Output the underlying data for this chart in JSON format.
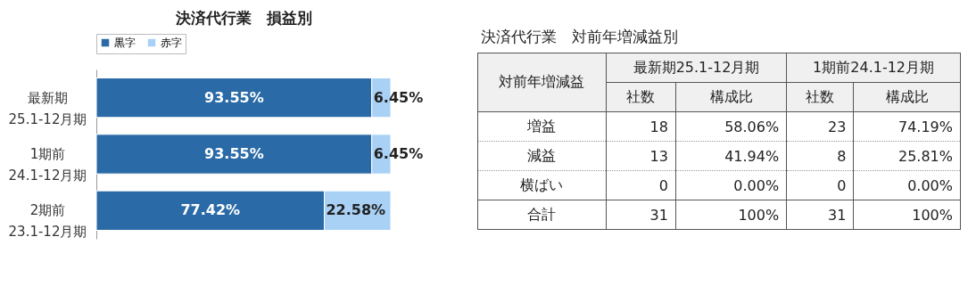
{
  "chart_data": [
    {
      "type": "bar",
      "orientation": "horizontal",
      "stacked": true,
      "title": "決済代行業　損益別",
      "legend": "top",
      "categories": [
        "最新期\n25.1-12月期",
        "1期前\n24.1-12月期",
        "2期前\n23.1-12月期"
      ],
      "series": [
        {
          "name": "黒字",
          "color": "#2a6aa6",
          "values": [
            93.55,
            93.55,
            77.42
          ],
          "value_labels": [
            "93.55%",
            "93.55%",
            "77.42%"
          ]
        },
        {
          "name": "赤字",
          "color": "#a8d1f5",
          "values": [
            6.45,
            6.45,
            22.58
          ],
          "value_labels": [
            "6.45%",
            "6.45%",
            "22.58%"
          ]
        }
      ]
    },
    {
      "type": "other",
      "title": "決済代行業　対前年増減益別",
      "annotations": [
        "対前年増減益",
        "最新期25.1-12月期",
        "1期前24.1-12月期",
        "社数",
        "構成比",
        "社数",
        "構成比",
        "増益",
        "18",
        "58.06%",
        "23",
        "74.19%",
        "減益",
        "13",
        "41.94%",
        "8",
        "25.81%",
        "横ばい",
        "0",
        "0.00%",
        "0",
        "0.00%",
        "合計",
        "31",
        "100%",
        "31",
        "100%"
      ]
    }
  ]
}
